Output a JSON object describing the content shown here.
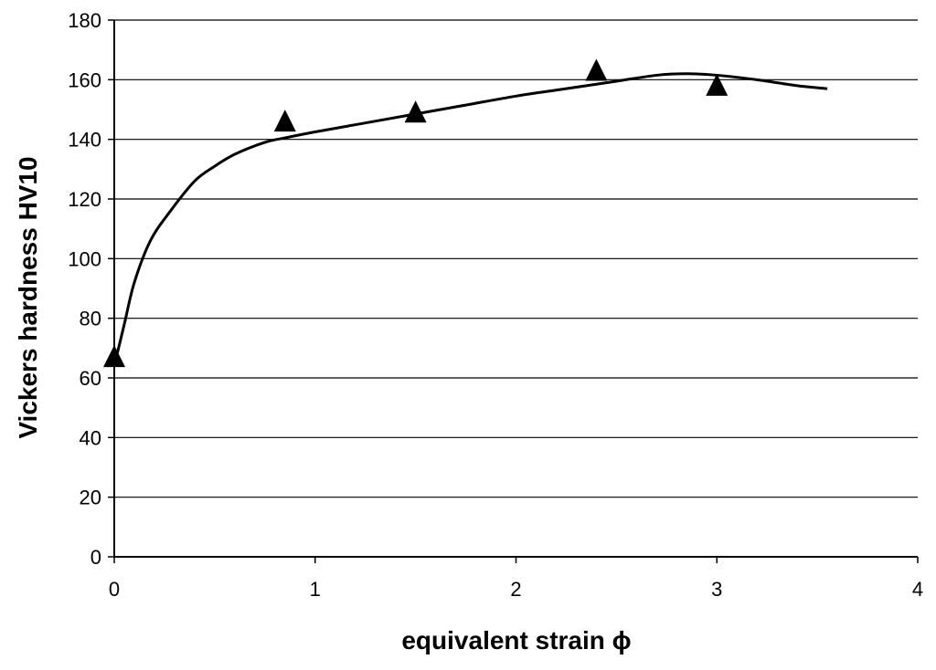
{
  "chart_data": {
    "type": "scatter",
    "title": "",
    "xlabel": "equivalent strain ϕ",
    "ylabel": "Vickers hardness HV10",
    "xlim": [
      0,
      4
    ],
    "ylim": [
      0,
      180
    ],
    "x_ticks": [
      0,
      1,
      2,
      3,
      4
    ],
    "y_ticks": [
      0,
      20,
      40,
      60,
      80,
      100,
      120,
      140,
      160,
      180
    ],
    "grid": "horizontal",
    "legend": "none",
    "colors": {
      "series": "#000000",
      "grid": "#000000",
      "background": "#ffffff"
    },
    "series": [
      {
        "marker": "triangle",
        "points": [
          {
            "x": 0.0,
            "y": 67
          },
          {
            "x": 0.85,
            "y": 146
          },
          {
            "x": 1.5,
            "y": 149
          },
          {
            "x": 2.4,
            "y": 163
          },
          {
            "x": 3.0,
            "y": 158
          }
        ]
      },
      {
        "marker": "none",
        "style": "line",
        "points": [
          {
            "x": 0.0,
            "y": 64
          },
          {
            "x": 0.05,
            "y": 78
          },
          {
            "x": 0.1,
            "y": 92
          },
          {
            "x": 0.18,
            "y": 106
          },
          {
            "x": 0.28,
            "y": 116
          },
          {
            "x": 0.4,
            "y": 126
          },
          {
            "x": 0.5,
            "y": 131
          },
          {
            "x": 0.6,
            "y": 135
          },
          {
            "x": 0.75,
            "y": 139
          },
          {
            "x": 0.85,
            "y": 140.5
          },
          {
            "x": 1.0,
            "y": 142.5
          },
          {
            "x": 1.25,
            "y": 145.5
          },
          {
            "x": 1.5,
            "y": 148.5
          },
          {
            "x": 1.75,
            "y": 151.5
          },
          {
            "x": 2.0,
            "y": 154.5
          },
          {
            "x": 2.25,
            "y": 157
          },
          {
            "x": 2.5,
            "y": 159.5
          },
          {
            "x": 2.7,
            "y": 161.5
          },
          {
            "x": 2.85,
            "y": 162
          },
          {
            "x": 3.0,
            "y": 161.5
          },
          {
            "x": 3.2,
            "y": 160
          },
          {
            "x": 3.4,
            "y": 158
          },
          {
            "x": 3.55,
            "y": 157
          }
        ]
      }
    ]
  }
}
